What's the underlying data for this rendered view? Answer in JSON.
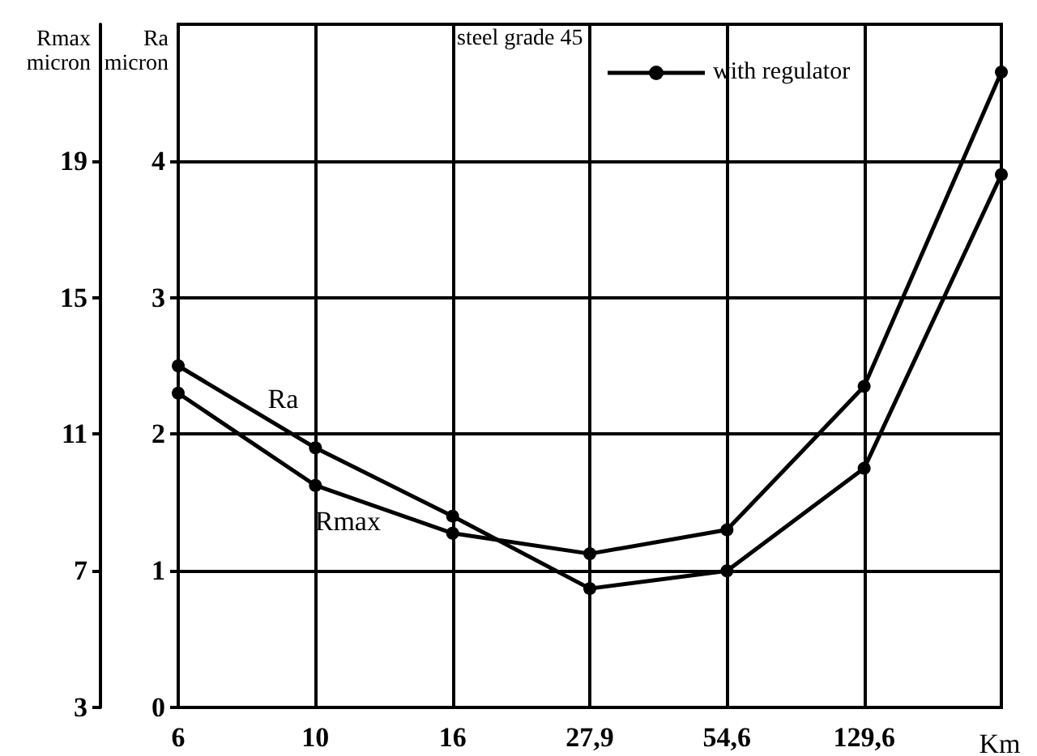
{
  "chart_data": {
    "type": "line",
    "legend_title": "steel grade 45",
    "annotations": [
      "with regulator"
    ],
    "xlabel": "Km",
    "ylabel": "Rmax\nmicron",
    "y2label": "Ra\nmicron",
    "categories": [
      "6",
      "10",
      "16",
      "27,9",
      "54,6",
      "129,6",
      null
    ],
    "series": [
      {
        "name": "Ra",
        "color": "#000000",
        "axis": "y2",
        "values": [
          2.5,
          1.9,
          1.4,
          0.87,
          1.0,
          1.75,
          3.9
        ]
      },
      {
        "name": "Rmax",
        "color": "#000000",
        "values": [
          12.2,
          9.5,
          8.1,
          7.5,
          8.2,
          12.4,
          21.6
        ]
      }
    ],
    "ylim": [
      3,
      23
    ],
    "yticks": [
      3,
      7,
      11,
      15,
      19
    ],
    "y2lim": [
      0,
      5
    ],
    "y2ticks": [
      0,
      1,
      2,
      3,
      4
    ],
    "grid": true,
    "marker": "circle",
    "line_style": "solid"
  }
}
